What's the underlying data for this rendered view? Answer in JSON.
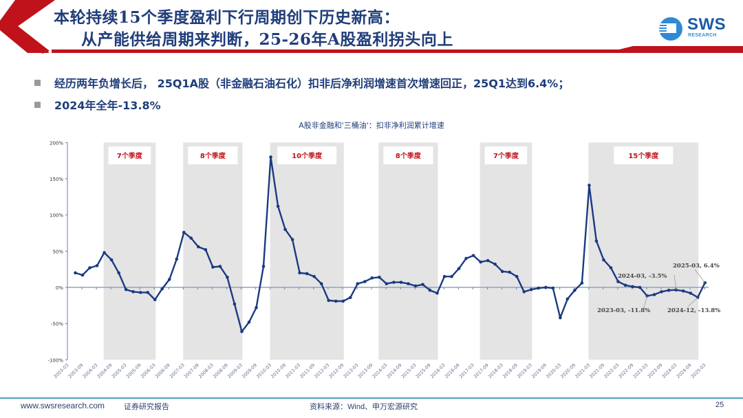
{
  "header": {
    "title_line1": "本轮持续15个季度盈利下行周期创下历史新高：",
    "title_line2": "从产能供给周期来判断，25-26年A股盈利拐头向上",
    "logo_text": "SWS",
    "logo_subtext": "RESEARCH",
    "accent_red": "#c0121a",
    "title_color": "#1f3d7a"
  },
  "bullets": [
    {
      "text": "经历两年负增长后， 25Q1A股（非金融石油石化）扣非后净利润增速首次增速回正，25Q1达到6.4%；"
    },
    {
      "text": "2024年全年-13.8%"
    }
  ],
  "chart_data": {
    "type": "line",
    "title": "A股非金融和'三桶油'：扣非净利润累计增速",
    "xlabel": "",
    "ylabel": "",
    "ylim": [
      -100,
      200
    ],
    "yticks": [
      "200%",
      "150%",
      "100%",
      "50%",
      "0%",
      "-50%",
      "-100%"
    ],
    "xtick_labels": [
      "2003-03",
      "2003-09",
      "2004-03",
      "2004-09",
      "2005-03",
      "2005-09",
      "2006-03",
      "2006-09",
      "2007-03",
      "2007-09",
      "2008-03",
      "2008-09",
      "2009-03",
      "2009-09",
      "2010-03",
      "2010-09",
      "2011-03",
      "2011-09",
      "2012-03",
      "2012-09",
      "2013-03",
      "2013-09",
      "2014-03",
      "2014-09",
      "2015-03",
      "2015-09",
      "2016-03",
      "2016-09",
      "2017-03",
      "2017-09",
      "2018-03",
      "2018-09",
      "2019-03",
      "2019-09",
      "2020-03",
      "2020-09",
      "2021-03",
      "2021-09",
      "2022-03",
      "2022-09",
      "2023-03",
      "2023-09",
      "2024-03",
      "2024-09",
      "2025-03"
    ],
    "series": [
      {
        "name": "扣非净利润累计增速",
        "color": "#1a3a80",
        "values": [
          20,
          17,
          27,
          30,
          48,
          38,
          20,
          -3,
          -6,
          -7,
          -7,
          -17,
          -2,
          11,
          39,
          76,
          68,
          56,
          52,
          28,
          29,
          14,
          -23,
          -61,
          -48,
          -28,
          29,
          180,
          112,
          80,
          66,
          20,
          19,
          15,
          5,
          -18,
          -19,
          -19,
          -14,
          5,
          8,
          13,
          14,
          5,
          7,
          7,
          5,
          2,
          4,
          -4,
          -8,
          15,
          15,
          26,
          40,
          44,
          35,
          37,
          32,
          22,
          21,
          15,
          -6,
          -3,
          -1,
          0,
          -1,
          -42,
          -16,
          -4,
          6,
          141,
          64,
          38,
          27,
          8,
          3,
          1,
          0,
          -11.8,
          -10,
          -6,
          -4,
          -3.5,
          -5,
          -8,
          -13.8,
          6.4
        ]
      }
    ],
    "shaded_periods": [
      {
        "label": "7个季度",
        "start_index": 4,
        "end_index": 11
      },
      {
        "label": "8个季度",
        "start_index": 15,
        "end_index": 23
      },
      {
        "label": "10个季度",
        "start_index": 27,
        "end_index": 37
      },
      {
        "label": "8个季度",
        "start_index": 42,
        "end_index": 50
      },
      {
        "label": "7个季度",
        "start_index": 56,
        "end_index": 63
      },
      {
        "label": "15个季度",
        "start_index": 71,
        "end_index": 86
      }
    ],
    "annotations": [
      {
        "text": "2024-03, -3.5%",
        "index": 83
      },
      {
        "text": "2025-03, 6.4%",
        "index": 87
      },
      {
        "text": "2023-03, -11.8%",
        "index": 79
      },
      {
        "text": "2024-12, -13.8%",
        "index": 86
      }
    ],
    "grid": false,
    "legend": "none"
  },
  "footer": {
    "website": "www.swsresearch.com",
    "report_type": "证券研究报告",
    "source": "资料来源：Wind、申万宏源研究",
    "page_number": "25"
  }
}
